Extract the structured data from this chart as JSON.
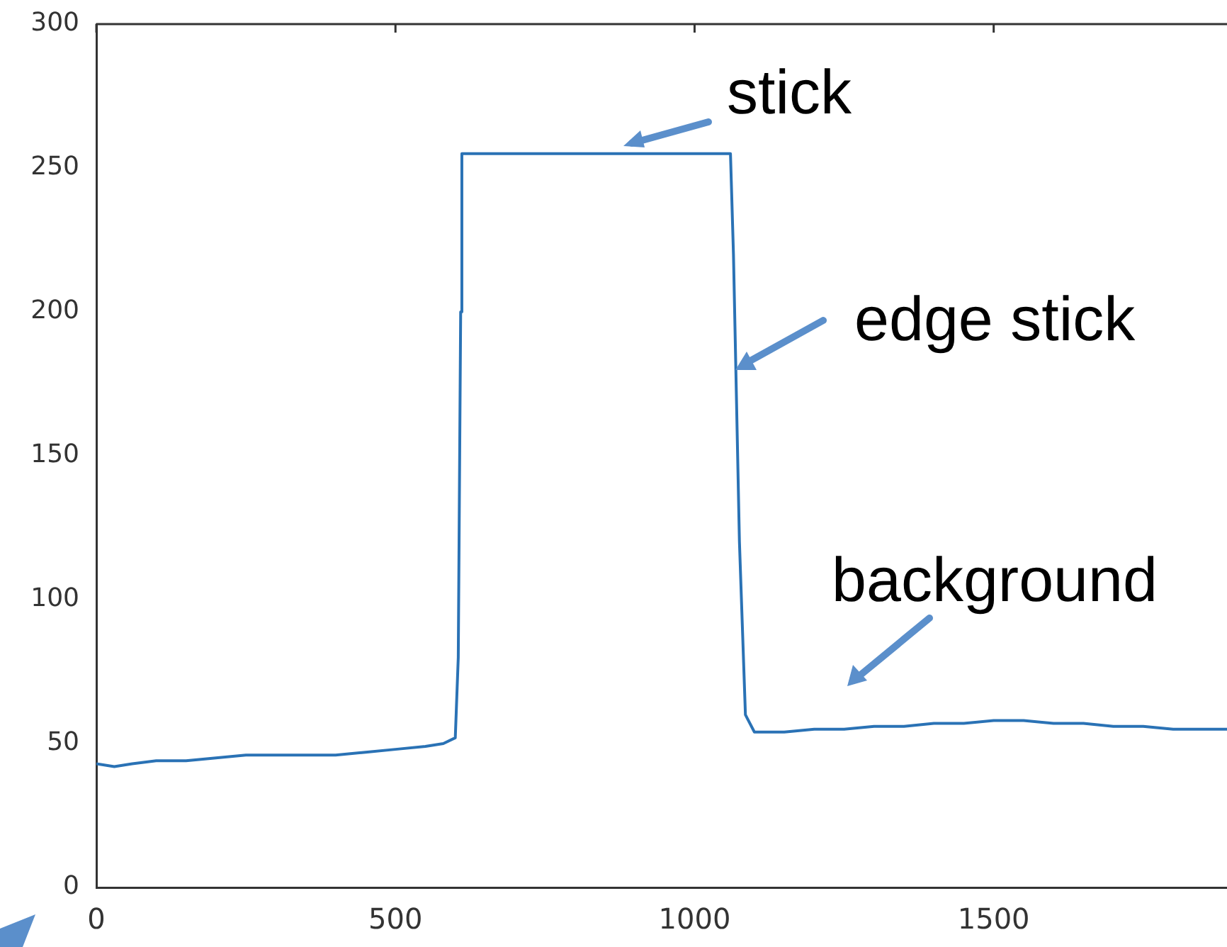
{
  "chart_data": {
    "type": "line",
    "annotations": [
      "stick",
      "edge stick",
      "background"
    ],
    "x": [
      0,
      30,
      60,
      100,
      150,
      200,
      250,
      300,
      350,
      400,
      450,
      500,
      550,
      580,
      600,
      605,
      609,
      611,
      700,
      800,
      900,
      1000,
      1060,
      1065,
      1075,
      1085,
      1100,
      1150,
      1200,
      1250,
      1300,
      1350,
      1400,
      1450,
      1500,
      1550,
      1600,
      1650,
      1700,
      1750,
      1800,
      1850,
      1890
    ],
    "series": [
      {
        "color": "#2a72b5",
        "values": [
          43,
          42,
          43,
          44,
          44,
          45,
          46,
          46,
          46,
          46,
          47,
          48,
          49,
          50,
          52,
          80,
          200,
          255,
          255,
          255,
          255,
          255,
          255,
          220,
          120,
          60,
          54,
          54,
          55,
          55,
          56,
          56,
          57,
          57,
          58,
          58,
          57,
          57,
          56,
          56,
          55,
          55,
          55
        ]
      }
    ],
    "xlim": [
      0,
      1890
    ],
    "ylim": [
      0,
      300
    ],
    "xticks": [
      0,
      500,
      1000,
      1500
    ],
    "yticks": [
      0,
      50,
      100,
      150,
      200,
      250,
      300
    ],
    "grid": false,
    "legend": false,
    "marker": "none",
    "line_style": "solid"
  }
}
